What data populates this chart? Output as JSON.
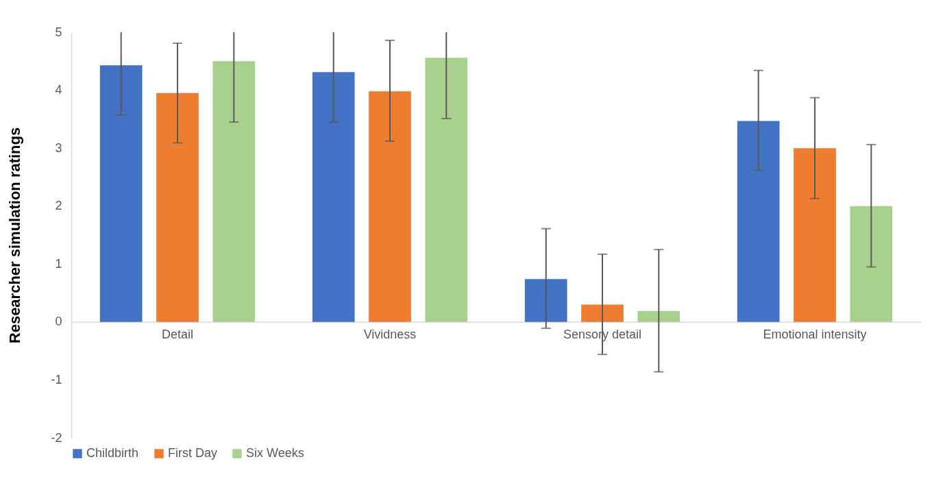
{
  "chart_data": {
    "type": "bar",
    "ylabel": "Researcher simulation ratings",
    "categories": [
      "Detail",
      "Vividness",
      "Sensory detail",
      "Emotional intensity"
    ],
    "series": [
      {
        "name": "Childbirth",
        "color": "#4472c4",
        "values": [
          4.43,
          4.31,
          0.74,
          3.47
        ],
        "errors": [
          [
            3.57,
            5
          ],
          [
            3.45,
            5
          ],
          [
            -0.11,
            1.61
          ],
          [
            2.62,
            4.34
          ]
        ]
      },
      {
        "name": "First Day",
        "color": "#ed7d31",
        "values": [
          3.95,
          3.98,
          0.3,
          3.0
        ],
        "errors": [
          [
            3.09,
            4.81
          ],
          [
            3.12,
            4.86
          ],
          [
            -0.56,
            1.17
          ],
          [
            2.13,
            3.87
          ]
        ]
      },
      {
        "name": "Six Weeks",
        "color": "#a9d18e",
        "values": [
          4.5,
          4.56,
          0.19,
          2.0
        ],
        "errors": [
          [
            3.45,
            5
          ],
          [
            3.51,
            5
          ],
          [
            -0.86,
            1.25
          ],
          [
            0.95,
            3.06
          ]
        ]
      }
    ],
    "ylim": [
      -2,
      5
    ],
    "yticks": [
      -2,
      -1,
      0,
      1,
      2,
      3,
      4,
      5
    ],
    "grid": false,
    "legend": "bottom"
  }
}
